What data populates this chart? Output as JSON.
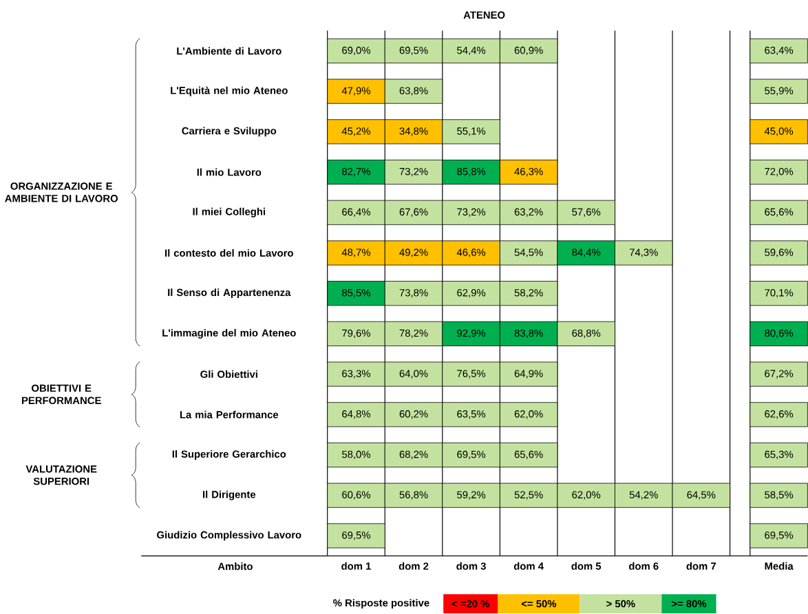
{
  "chart_data": {
    "type": "heatmap",
    "title": "ATENEO",
    "ylabel": "Ambito",
    "clabel": "% Risposte positive",
    "categories": [
      "dom 1",
      "dom 2",
      "dom 3",
      "dom 4",
      "dom 5",
      "dom 6",
      "dom 7",
      "Media"
    ],
    "y_categories": [
      "L'Ambiente di Lavoro",
      "L'Equità nel mio Ateneo",
      "Carriera e Sviluppo",
      "Il mio Lavoro",
      "Il miei Colleghi",
      "Il contesto del mio Lavoro",
      "Il Senso di Appartenenza",
      "L'immagine del mio Ateneo",
      "Gli Obiettivi",
      "La mia Performance",
      "Il Superiore Gerarchico",
      "Il Dirigente",
      "Giudizio Complessivo Lavoro"
    ],
    "cells": [
      [
        69.0,
        69.5,
        54.4,
        60.9,
        null,
        null,
        null,
        63.4
      ],
      [
        47.9,
        63.8,
        null,
        null,
        null,
        null,
        null,
        55.9
      ],
      [
        45.2,
        34.8,
        55.1,
        null,
        null,
        null,
        null,
        45.0
      ],
      [
        82.7,
        73.2,
        85.8,
        46.3,
        null,
        null,
        null,
        72.0
      ],
      [
        66.4,
        67.6,
        73.2,
        63.2,
        57.6,
        null,
        null,
        65.6
      ],
      [
        48.7,
        49.2,
        46.6,
        54.5,
        84.4,
        74.3,
        null,
        59.6
      ],
      [
        85.5,
        73.8,
        62.9,
        58.2,
        null,
        null,
        null,
        70.1
      ],
      [
        79.6,
        78.2,
        92.9,
        83.8,
        68.8,
        null,
        null,
        80.6
      ],
      [
        63.3,
        64.0,
        76.5,
        64.9,
        null,
        null,
        null,
        67.2
      ],
      [
        64.8,
        60.2,
        63.5,
        62.0,
        null,
        null,
        null,
        62.6
      ],
      [
        58.0,
        68.2,
        69.5,
        65.6,
        null,
        null,
        null,
        65.3
      ],
      [
        60.6,
        56.8,
        59.2,
        52.5,
        62.0,
        54.2,
        64.5,
        58.5
      ],
      [
        69.5,
        null,
        null,
        null,
        null,
        null,
        null,
        69.5
      ]
    ],
    "cell_labels": [
      [
        "69,0%",
        "69,5%",
        "54,4%",
        "60,9%",
        null,
        null,
        null,
        "63,4%"
      ],
      [
        "47,9%",
        "63,8%",
        null,
        null,
        null,
        null,
        null,
        "55,9%"
      ],
      [
        "45,2%",
        "34,8%",
        "55,1%",
        null,
        null,
        null,
        null,
        "45,0%"
      ],
      [
        "82,7%",
        "73,2%",
        "85,8%",
        "46,3%",
        null,
        null,
        null,
        "72,0%"
      ],
      [
        "66,4%",
        "67,6%",
        "73,2%",
        "63,2%",
        "57,6%",
        null,
        null,
        "65,6%"
      ],
      [
        "48,7%",
        "49,2%",
        "46,6%",
        "54,5%",
        "84,4%",
        "74,3%",
        null,
        "59,6%"
      ],
      [
        "85,5%",
        "73,8%",
        "62,9%",
        "58,2%",
        null,
        null,
        null,
        "70,1%"
      ],
      [
        "79,6%",
        "78,2%",
        "92,9%",
        "83,8%",
        "68,8%",
        null,
        null,
        "80,6%"
      ],
      [
        "63,3%",
        "64,0%",
        "76,5%",
        "64,9%",
        null,
        null,
        null,
        "67,2%"
      ],
      [
        "64,8%",
        "60,2%",
        "63,5%",
        "62,0%",
        null,
        null,
        null,
        "62,6%"
      ],
      [
        "58,0%",
        "68,2%",
        "69,5%",
        "65,6%",
        null,
        null,
        null,
        "65,3%"
      ],
      [
        "60,6%",
        "56,8%",
        "59,2%",
        "52,5%",
        "62,0%",
        "54,2%",
        "64,5%",
        "58,5%"
      ],
      [
        "69,5%",
        null,
        null,
        null,
        null,
        null,
        null,
        "69,5%"
      ]
    ],
    "clim": [
      0,
      100
    ],
    "cticks": [
      {
        "value": 10,
        "label": "< =20 %"
      },
      {
        "value": 20,
        "label": null
      },
      {
        "value": 35,
        "label": "<= 50%"
      },
      {
        "value": 50,
        "label": null
      },
      {
        "value": 65,
        "label": "> 50%"
      },
      {
        "value": 80,
        "label": null
      },
      {
        "value": 90,
        "label": ">= 80%"
      }
    ],
    "colors": [
      "#ff0000",
      "#ffc000",
      "#c4e29f",
      "#00b050"
    ],
    "annotations": [
      "ORGANIZZAZIONE E AMBIENTE DI LAVORO",
      "OBIETTIVI E PERFORMANCE",
      "VALUTAZIONE SUPERIORI"
    ]
  }
}
